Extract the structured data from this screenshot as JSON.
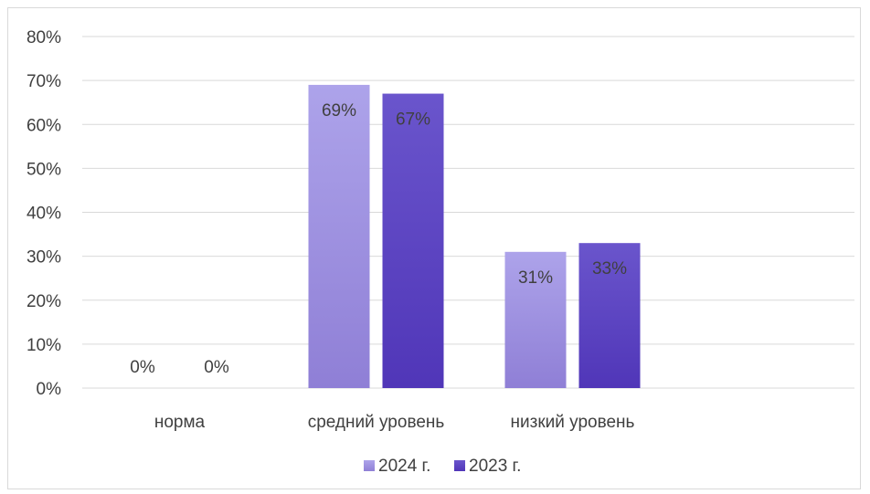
{
  "chart_data": {
    "type": "bar",
    "categories": [
      "норма",
      "средний уровень",
      "низкий уровень"
    ],
    "series": [
      {
        "name": "2024 г.",
        "values": [
          0,
          69,
          31
        ],
        "labels": [
          "0%",
          "69%",
          "31%"
        ],
        "color_top": "#ada3ea",
        "color_bottom": "#8f7fd6"
      },
      {
        "name": "2023 г.",
        "values": [
          0,
          67,
          33
        ],
        "labels": [
          "0%",
          "67%",
          "33%"
        ],
        "color_top": "#6a55cc",
        "color_bottom": "#5036b8"
      }
    ],
    "ylim": [
      0,
      80
    ],
    "yticks": [
      0,
      10,
      20,
      30,
      40,
      50,
      60,
      70,
      80
    ],
    "ytick_labels": [
      "0%",
      "10%",
      "20%",
      "30%",
      "40%",
      "50%",
      "60%",
      "70%",
      "80%"
    ],
    "grid": true,
    "legend_position": "bottom",
    "gridline_color": "#d9d9d9",
    "text_color": "#404040"
  }
}
